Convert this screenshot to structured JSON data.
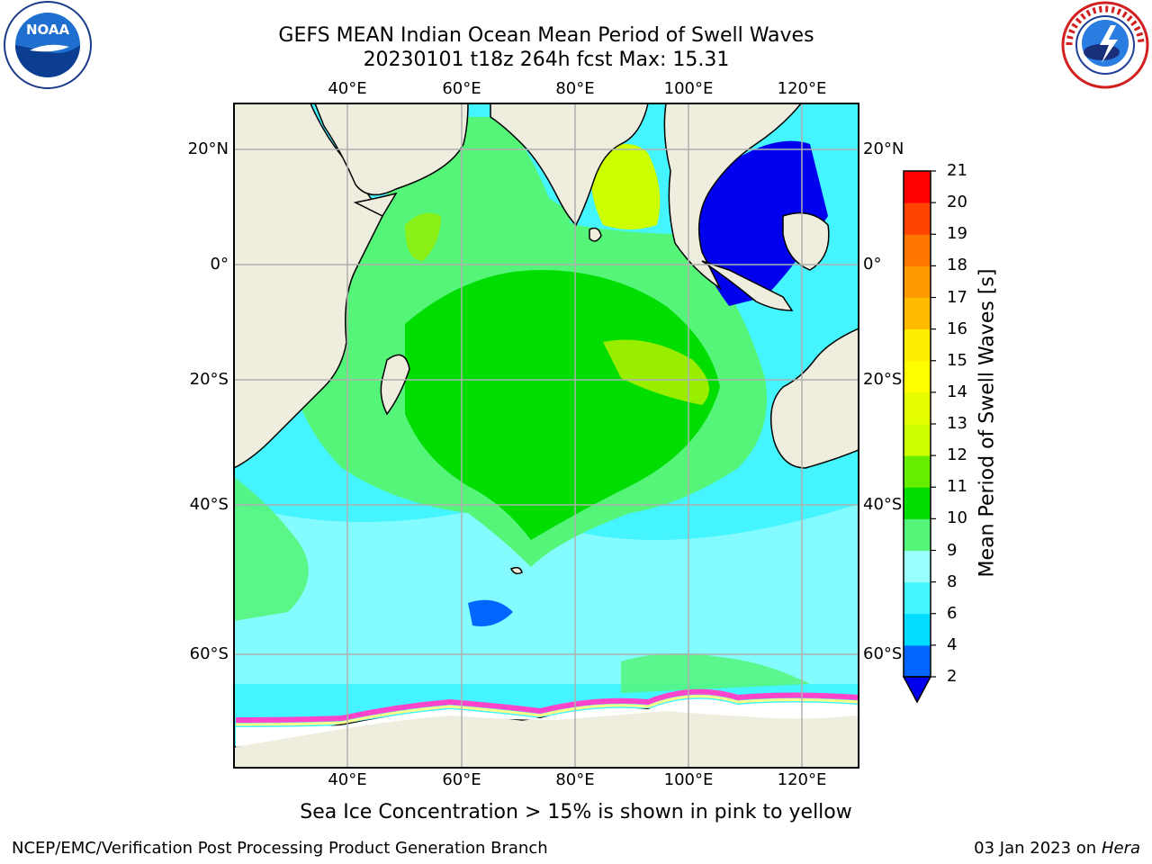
{
  "header": {
    "title_line1": "GEFS MEAN Indian Ocean Mean Period of Swell Waves",
    "title_line2": "20230101 t18z 264h fcst   Max: 15.31"
  },
  "logos": {
    "left": {
      "text": "NOAA",
      "ring_text": "NATIONAL OCEANIC AND ATMOSPHERIC ADMINISTRATION · U.S. DEPARTMENT OF COMMERCE"
    },
    "right": {
      "ring_text": "NATIONAL WEATHER SERVICE"
    }
  },
  "map": {
    "lon_ticks_top": [
      "40°E",
      "60°E",
      "80°E",
      "100°E",
      "120°E"
    ],
    "lon_ticks_bottom": [
      "40°E",
      "60°E",
      "80°E",
      "100°E",
      "120°E"
    ],
    "lat_ticks_left": [
      "20°N",
      "0°",
      "20°S",
      "40°S",
      "60°S"
    ],
    "lat_ticks_right": [
      "20°N",
      "0°",
      "20°S",
      "40°S",
      "60°S"
    ],
    "colors": {
      "land": "#efedde",
      "grid": "#b0b0b0",
      "ice_pink": "#ff44cc",
      "ice_yellow": "#ffff88"
    }
  },
  "colorbar": {
    "title": "Mean Period of Swell Waves [s]",
    "tick_labels": [
      "2",
      "4",
      "6",
      "8",
      "9",
      "10",
      "11",
      "12",
      "13",
      "14",
      "15",
      "16",
      "17",
      "18",
      "19",
      "20",
      "21"
    ],
    "bins": [
      {
        "from": 2,
        "to": 4,
        "color": "#0066ff"
      },
      {
        "from": 4,
        "to": 6,
        "color": "#00ddff"
      },
      {
        "from": 6,
        "to": 8,
        "color": "#44f4ff"
      },
      {
        "from": 8,
        "to": 9,
        "color": "#99ffff"
      },
      {
        "from": 9,
        "to": 10,
        "color": "#55f57a"
      },
      {
        "from": 10,
        "to": 11,
        "color": "#00dd00"
      },
      {
        "from": 11,
        "to": 12,
        "color": "#66ee00"
      },
      {
        "from": 12,
        "to": 13,
        "color": "#ccff00"
      },
      {
        "from": 13,
        "to": 14,
        "color": "#e6ff00"
      },
      {
        "from": 14,
        "to": 15,
        "color": "#ffff00"
      },
      {
        "from": 15,
        "to": 16,
        "color": "#ffee00"
      },
      {
        "from": 16,
        "to": 17,
        "color": "#ffbb00"
      },
      {
        "from": 17,
        "to": 18,
        "color": "#ff9900"
      },
      {
        "from": 18,
        "to": 19,
        "color": "#ff7700"
      },
      {
        "from": 19,
        "to": 20,
        "color": "#ff4400"
      },
      {
        "from": 20,
        "to": 21,
        "color": "#ff0000"
      }
    ],
    "under_color": "#0000ee"
  },
  "ice_note": "Sea Ice Concentration > 15% is shown in pink to yellow",
  "footer": {
    "left": "NCEP/EMC/Verification Post Processing Product Generation Branch",
    "right_date": "03 Jan 2023 on ",
    "right_host": "Hera"
  }
}
